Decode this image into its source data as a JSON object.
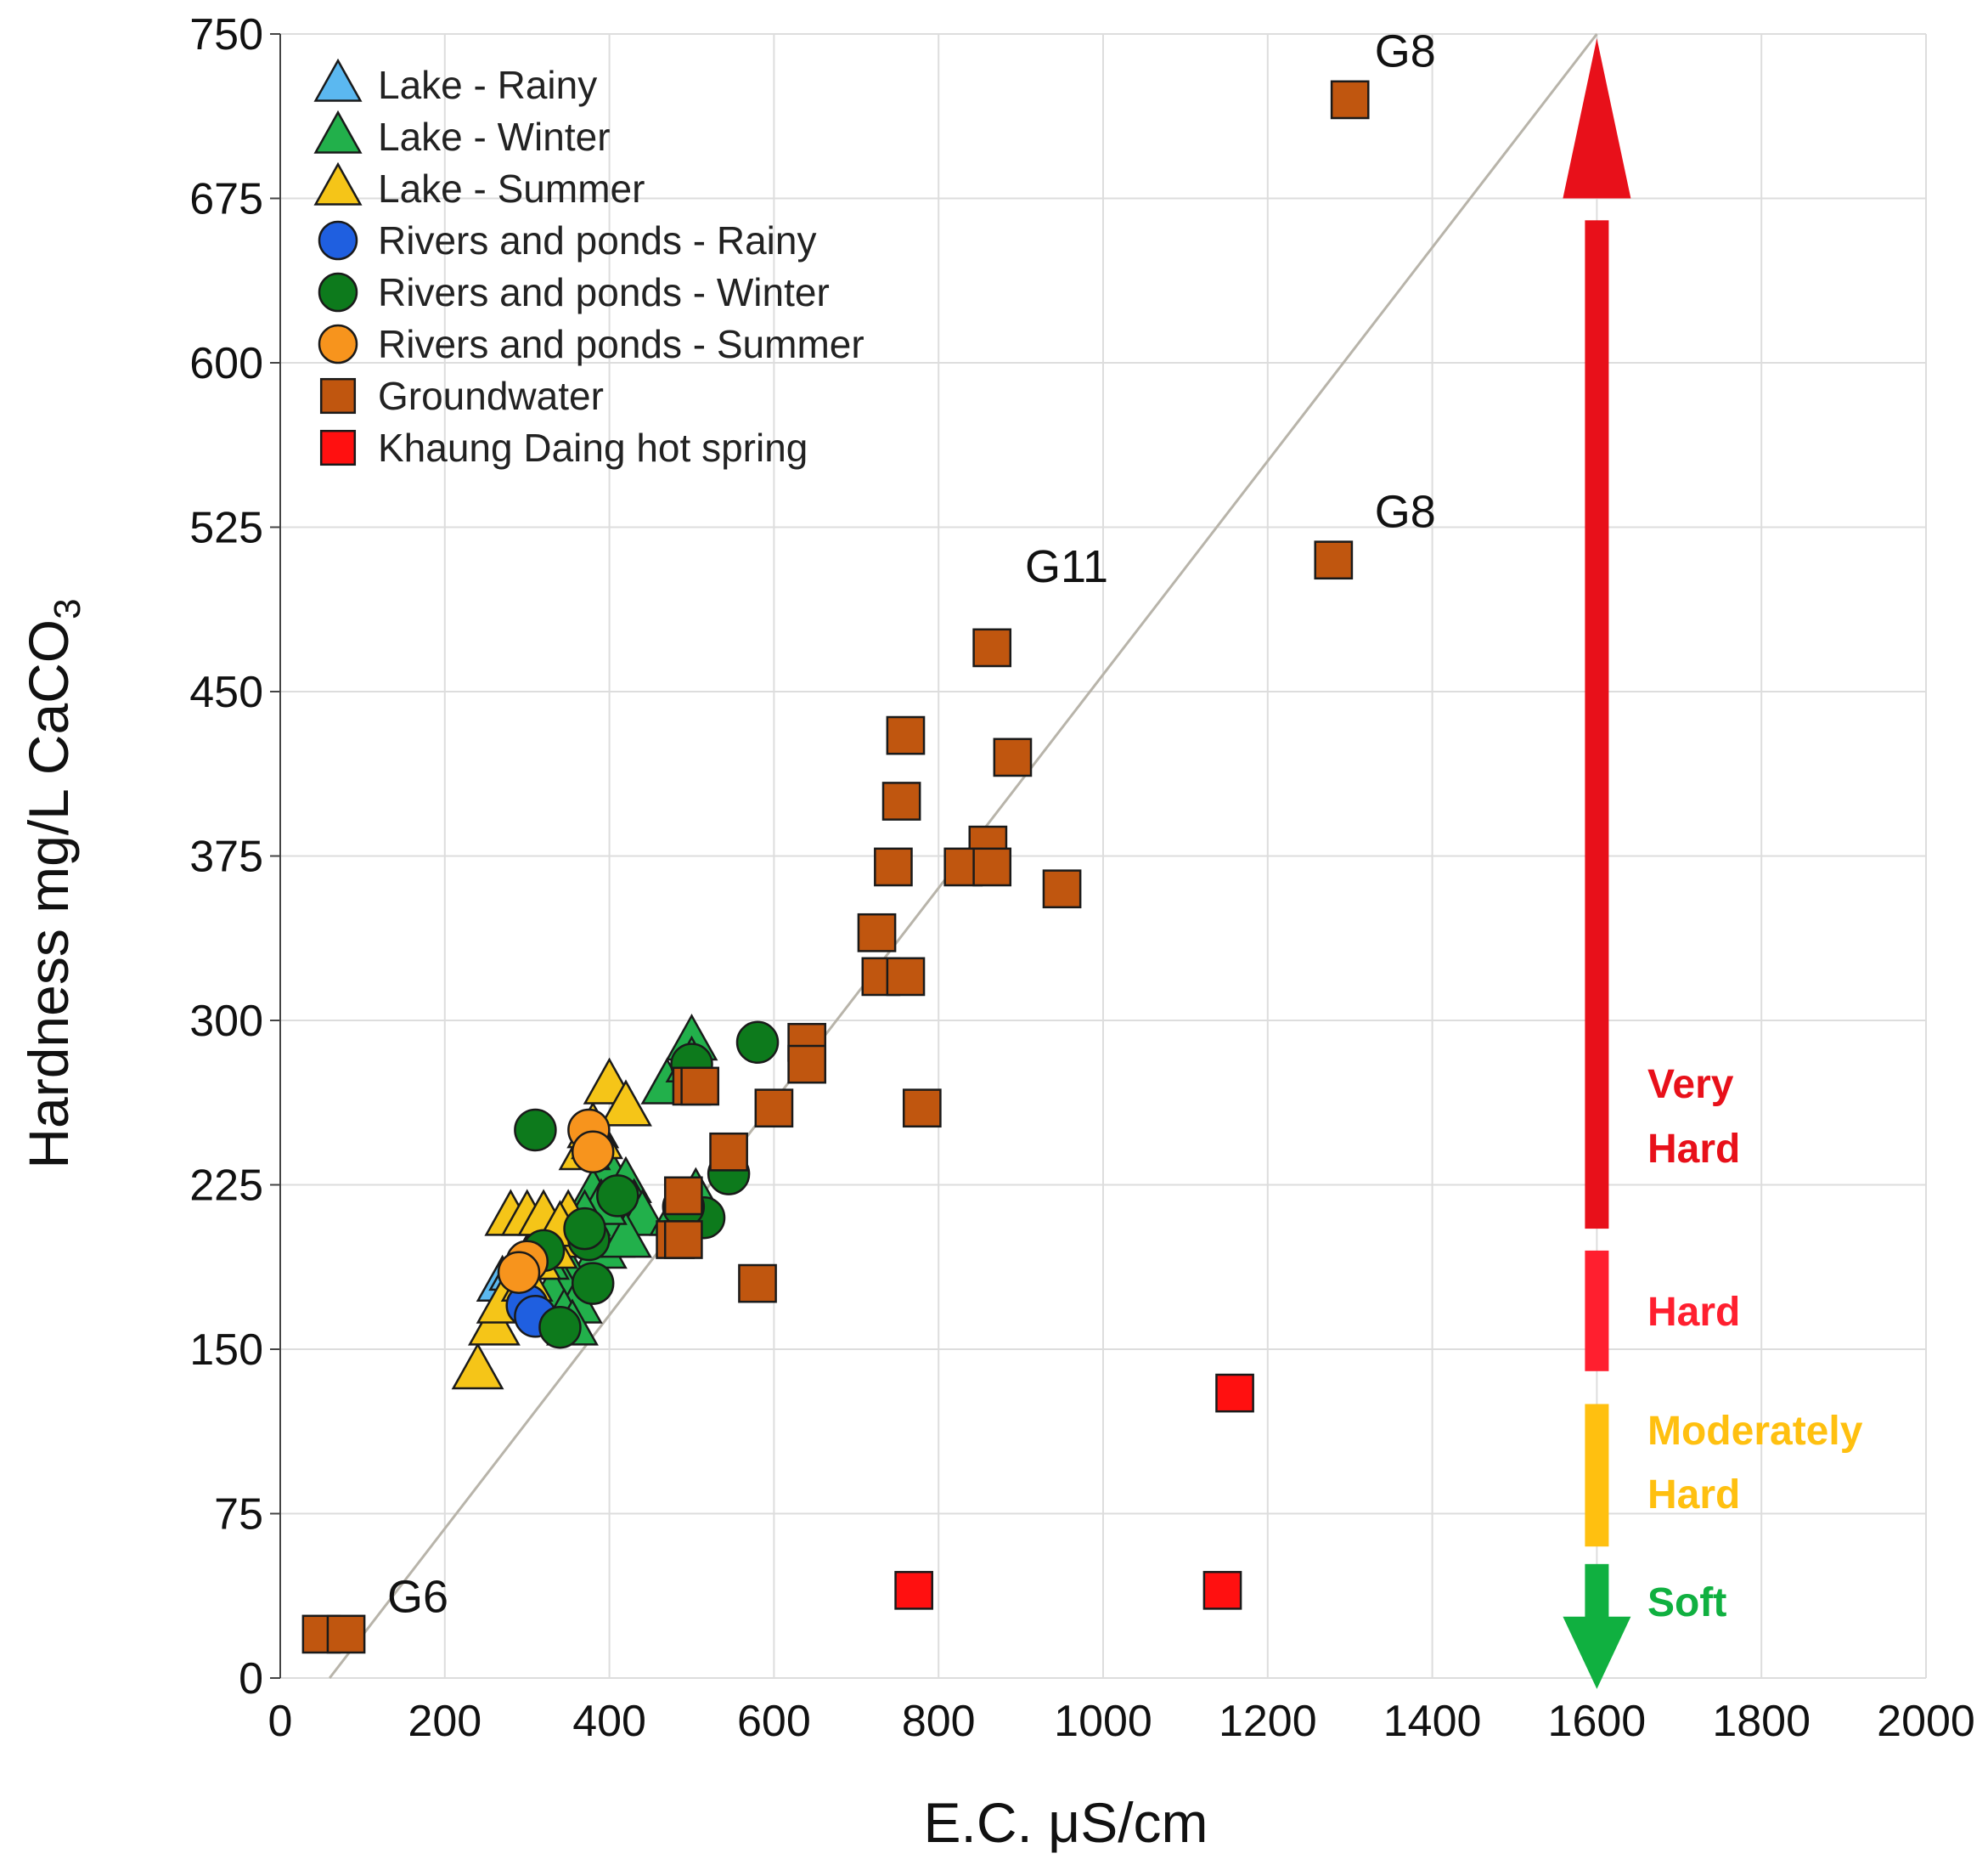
{
  "chart_data": {
    "type": "scatter",
    "xlabel": "E.C. μS/cm",
    "ylabel": "Hardness mg/L CaCO",
    "ylabel_sub": "3",
    "xlim": [
      0,
      2000
    ],
    "ylim": [
      0,
      750
    ],
    "xticks": [
      0,
      200,
      400,
      600,
      800,
      1000,
      1200,
      1400,
      1600,
      1800,
      2000
    ],
    "yticks": [
      0,
      75,
      150,
      225,
      300,
      375,
      450,
      525,
      600,
      675,
      750
    ],
    "grid": true,
    "legend_position": "top-left",
    "reference_line": {
      "x": [
        60,
        1600
      ],
      "y": [
        0,
        750
      ]
    },
    "series": [
      {
        "name": "Lake - Rainy",
        "marker": "triangle",
        "color": "#5bb8f0",
        "points": [
          [
            270,
            180
          ],
          [
            285,
            185
          ],
          [
            300,
            190
          ],
          [
            290,
            175
          ]
        ]
      },
      {
        "name": "Lake - Winter",
        "marker": "triangle",
        "color": "#22b04b",
        "points": [
          [
            500,
            290
          ],
          [
            470,
            270
          ],
          [
            500,
            280
          ],
          [
            400,
            230
          ],
          [
            380,
            220
          ],
          [
            420,
            225
          ],
          [
            430,
            215
          ],
          [
            440,
            210
          ],
          [
            400,
            200
          ],
          [
            410,
            205
          ],
          [
            390,
            195
          ],
          [
            350,
            185
          ],
          [
            340,
            180
          ],
          [
            330,
            175
          ],
          [
            360,
            170
          ],
          [
            320,
            190
          ],
          [
            345,
            165
          ],
          [
            355,
            160
          ],
          [
            480,
            210
          ],
          [
            505,
            220
          ],
          [
            420,
            200
          ],
          [
            390,
            215
          ],
          [
            370,
            210
          ]
        ]
      },
      {
        "name": "Lake - Summer",
        "marker": "triangle",
        "color": "#f5c518",
        "points": [
          [
            240,
            140
          ],
          [
            260,
            160
          ],
          [
            270,
            170
          ],
          [
            280,
            210
          ],
          [
            300,
            210
          ],
          [
            320,
            210
          ],
          [
            350,
            210
          ],
          [
            360,
            200
          ],
          [
            370,
            240
          ],
          [
            380,
            250
          ],
          [
            400,
            270
          ],
          [
            420,
            260
          ],
          [
            300,
            180
          ],
          [
            310,
            190
          ],
          [
            330,
            195
          ],
          [
            340,
            205
          ],
          [
            385,
            245
          ]
        ]
      },
      {
        "name": "Rivers and ponds - Rainy",
        "marker": "circle",
        "color": "#1f5fe0",
        "points": [
          [
            300,
            170
          ],
          [
            310,
            165
          ]
        ]
      },
      {
        "name": "Rivers and ponds - Winter",
        "marker": "circle",
        "color": "#0d7a1c",
        "points": [
          [
            310,
            250
          ],
          [
            580,
            290
          ],
          [
            500,
            280
          ],
          [
            545,
            230
          ],
          [
            515,
            210
          ],
          [
            490,
            215
          ],
          [
            375,
            200
          ],
          [
            380,
            180
          ],
          [
            340,
            160
          ],
          [
            320,
            195
          ],
          [
            410,
            220
          ],
          [
            370,
            205
          ]
        ]
      },
      {
        "name": "Rivers and ponds - Summer",
        "marker": "circle",
        "color": "#f7941d",
        "points": [
          [
            300,
            190
          ],
          [
            290,
            185
          ],
          [
            375,
            250
          ],
          [
            380,
            240
          ]
        ]
      },
      {
        "name": "Groundwater",
        "marker": "square",
        "color": "#c0560f",
        "points": [
          [
            50,
            20
          ],
          [
            80,
            20
          ],
          [
            1300,
            720
          ],
          [
            1280,
            510
          ],
          [
            865,
            470
          ],
          [
            760,
            430
          ],
          [
            890,
            420
          ],
          [
            755,
            400
          ],
          [
            860,
            380
          ],
          [
            830,
            370
          ],
          [
            865,
            370
          ],
          [
            745,
            370
          ],
          [
            950,
            360
          ],
          [
            725,
            340
          ],
          [
            730,
            320
          ],
          [
            760,
            320
          ],
          [
            640,
            290
          ],
          [
            640,
            280
          ],
          [
            500,
            270
          ],
          [
            600,
            260
          ],
          [
            780,
            260
          ],
          [
            545,
            240
          ],
          [
            490,
            220
          ],
          [
            480,
            200
          ],
          [
            490,
            200
          ],
          [
            580,
            180
          ],
          [
            510,
            270
          ]
        ]
      },
      {
        "name": "Khaung Daing hot spring",
        "marker": "square",
        "color": "#ff1010",
        "points": [
          [
            1160,
            130
          ],
          [
            770,
            40
          ],
          [
            1145,
            40
          ]
        ]
      }
    ],
    "annotations": [
      {
        "text": "G8",
        "x": 1330,
        "y": 735
      },
      {
        "text": "G8",
        "x": 1330,
        "y": 525
      },
      {
        "text": "G11",
        "x": 905,
        "y": 500
      },
      {
        "text": "G6",
        "x": 130,
        "y": 30
      }
    ],
    "hardness_classes": [
      {
        "lines": [
          "Very",
          "Hard"
        ],
        "color": "#e8101a"
      },
      {
        "lines": [
          "Hard"
        ],
        "color": "#ff1f2f"
      },
      {
        "lines": [
          "Moderately",
          "Hard"
        ],
        "color": "#ffc010"
      },
      {
        "lines": [
          "Soft"
        ],
        "color": "#10b040"
      }
    ]
  }
}
